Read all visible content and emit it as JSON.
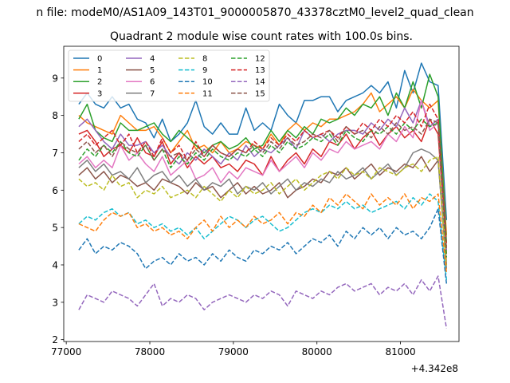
{
  "chart_data": {
    "type": "line",
    "suptitle": "n file: modeM0/AS1A09_143T01_9000005870_43378cztM0_level2_quad_clean",
    "title": "Quadrant 2 module wise count rates with 100.0s bins.",
    "xlabel": "",
    "ylabel": "",
    "x_offset_label": "+4.342e8",
    "xlim": [
      76970,
      81700
    ],
    "ylim": [
      1.95,
      9.85
    ],
    "xticks": [
      77000,
      78000,
      79000,
      80000,
      81000
    ],
    "yticks": [
      2,
      3,
      4,
      5,
      6,
      7,
      8,
      9
    ],
    "grid": false,
    "legend": {
      "placement": "upper-left",
      "columns": 4
    },
    "x": [
      77150,
      77250,
      77350,
      77450,
      77550,
      77650,
      77750,
      77850,
      77950,
      78050,
      78150,
      78250,
      78350,
      78450,
      78550,
      78650,
      78750,
      78850,
      78950,
      79050,
      79150,
      79250,
      79350,
      79450,
      79550,
      79650,
      79750,
      79850,
      79950,
      80050,
      80150,
      80250,
      80350,
      80450,
      80550,
      80650,
      80750,
      80850,
      80950,
      81050,
      81150,
      81250,
      81350,
      81450,
      81550
    ],
    "series": [
      {
        "name": "0",
        "color": "#1f77b4",
        "dash": "solid",
        "values": [
          8.3,
          8.6,
          8.3,
          8.2,
          8.5,
          8.2,
          8.3,
          7.9,
          7.8,
          7.4,
          7.9,
          7.3,
          7.5,
          7.8,
          8.4,
          7.7,
          7.5,
          7.8,
          7.5,
          7.5,
          8.2,
          7.6,
          7.8,
          7.6,
          8.3,
          8.0,
          7.8,
          8.4,
          8.4,
          8.5,
          8.5,
          8.1,
          8.4,
          8.5,
          8.6,
          8.8,
          8.6,
          8.9,
          8.2,
          9.2,
          8.6,
          9.4,
          8.9,
          8.8,
          5.2
        ]
      },
      {
        "name": "1",
        "color": "#ff7f0e",
        "dash": "solid",
        "values": [
          8.0,
          7.8,
          7.7,
          7.6,
          7.5,
          8.0,
          7.8,
          7.6,
          7.6,
          7.7,
          7.4,
          7.0,
          7.3,
          7.6,
          7.1,
          7.2,
          7.0,
          7.3,
          7.0,
          7.1,
          7.3,
          7.2,
          7.1,
          7.5,
          7.2,
          7.6,
          7.8,
          7.6,
          7.8,
          7.7,
          7.9,
          7.9,
          8.0,
          8.1,
          8.3,
          8.6,
          8.1,
          8.3,
          8.5,
          8.2,
          8.7,
          8.4,
          8.2,
          8.4,
          4.8
        ]
      },
      {
        "name": "2",
        "color": "#2ca02c",
        "dash": "solid",
        "values": [
          7.9,
          8.3,
          7.6,
          7.4,
          7.3,
          7.8,
          7.6,
          7.6,
          7.7,
          7.8,
          7.5,
          7.3,
          7.6,
          7.4,
          7.2,
          7.0,
          7.2,
          7.3,
          7.1,
          7.2,
          7.4,
          7.1,
          7.2,
          7.6,
          7.3,
          7.6,
          7.4,
          7.7,
          7.5,
          7.9,
          7.8,
          7.9,
          8.2,
          8.0,
          8.3,
          8.2,
          8.5,
          8.0,
          8.6,
          8.2,
          8.9,
          8.2,
          9.1,
          8.5,
          4.6
        ]
      },
      {
        "name": "3",
        "color": "#d62728",
        "dash": "solid",
        "values": [
          7.5,
          7.6,
          7.3,
          6.9,
          7.1,
          7.2,
          7.0,
          7.4,
          7.0,
          6.9,
          7.3,
          6.7,
          7.0,
          6.6,
          6.9,
          6.7,
          6.9,
          6.6,
          6.7,
          6.5,
          6.8,
          6.7,
          6.4,
          6.9,
          6.5,
          6.8,
          7.0,
          6.7,
          7.1,
          6.9,
          7.3,
          7.2,
          7.5,
          7.1,
          7.4,
          7.6,
          7.2,
          7.5,
          7.7,
          7.4,
          7.6,
          7.3,
          7.9,
          7.5,
          4.3
        ]
      },
      {
        "name": "4",
        "color": "#9467bd",
        "dash": "solid",
        "values": [
          7.7,
          7.9,
          7.6,
          7.3,
          7.1,
          7.5,
          7.2,
          7.2,
          7.3,
          7.0,
          7.2,
          6.9,
          6.7,
          7.0,
          6.8,
          7.1,
          6.9,
          6.7,
          7.0,
          6.8,
          7.2,
          6.9,
          7.1,
          7.0,
          7.2,
          7.4,
          7.1,
          7.6,
          7.4,
          7.5,
          7.3,
          7.5,
          7.6,
          7.6,
          7.5,
          7.8,
          7.6,
          7.9,
          7.7,
          8.2,
          7.8,
          8.4,
          7.7,
          7.9,
          4.4
        ]
      },
      {
        "name": "5",
        "color": "#8c564b",
        "dash": "solid",
        "values": [
          6.4,
          6.6,
          6.3,
          6.5,
          6.2,
          6.4,
          6.3,
          6.1,
          6.2,
          6.0,
          6.3,
          6.2,
          6.1,
          5.9,
          6.2,
          6.0,
          6.1,
          5.8,
          6.0,
          6.2,
          5.9,
          6.1,
          5.9,
          6.0,
          6.2,
          5.8,
          6.0,
          6.1,
          6.3,
          6.2,
          6.5,
          6.4,
          6.6,
          6.3,
          6.5,
          6.7,
          6.4,
          6.6,
          6.5,
          6.7,
          6.6,
          6.9,
          6.5,
          6.8,
          4.0
        ]
      },
      {
        "name": "6",
        "color": "#e377c2",
        "dash": "solid",
        "values": [
          6.7,
          6.9,
          6.6,
          6.8,
          6.6,
          7.2,
          6.8,
          7.0,
          6.7,
          6.5,
          6.9,
          6.4,
          6.6,
          6.8,
          6.3,
          6.4,
          6.6,
          6.2,
          6.5,
          6.3,
          6.6,
          6.5,
          6.4,
          6.8,
          6.5,
          6.7,
          6.9,
          6.6,
          7.0,
          6.8,
          7.1,
          7.0,
          7.3,
          7.1,
          7.2,
          7.3,
          7.1,
          7.5,
          7.3,
          7.7,
          7.4,
          8.4,
          7.6,
          7.8,
          4.1
        ]
      },
      {
        "name": "7",
        "color": "#7f7f7f",
        "dash": "solid",
        "values": [
          6.6,
          6.8,
          6.5,
          6.7,
          6.4,
          6.5,
          6.3,
          6.6,
          6.2,
          6.4,
          6.5,
          6.2,
          6.4,
          6.1,
          6.3,
          6.0,
          6.2,
          6.1,
          6.3,
          5.9,
          6.1,
          6.0,
          6.2,
          5.9,
          6.1,
          6.3,
          6.0,
          6.2,
          6.1,
          6.3,
          6.2,
          6.5,
          6.3,
          6.4,
          6.6,
          6.3,
          6.5,
          6.7,
          6.4,
          6.6,
          7.0,
          7.1,
          7.0,
          6.8,
          3.9
        ]
      },
      {
        "name": "8",
        "color": "#bcbd22",
        "dash": "dashed",
        "values": [
          6.3,
          6.1,
          6.2,
          6.0,
          6.4,
          6.1,
          6.2,
          5.8,
          6.0,
          5.9,
          6.1,
          5.8,
          5.9,
          6.0,
          5.8,
          6.1,
          5.9,
          5.7,
          6.0,
          5.8,
          6.1,
          5.9,
          6.0,
          6.2,
          5.9,
          6.1,
          6.3,
          6.0,
          6.2,
          6.4,
          6.5,
          6.3,
          6.6,
          6.4,
          6.5,
          6.3,
          6.6,
          6.5,
          6.4,
          6.6,
          6.7,
          6.5,
          6.8,
          6.9,
          4.0
        ]
      },
      {
        "name": "9",
        "color": "#17becf",
        "dash": "dashed",
        "values": [
          5.1,
          5.3,
          5.2,
          5.4,
          5.5,
          5.3,
          5.4,
          5.1,
          5.2,
          5.0,
          5.1,
          4.9,
          5.0,
          4.8,
          5.0,
          4.7,
          4.9,
          5.1,
          5.3,
          5.2,
          5.0,
          5.2,
          5.3,
          5.1,
          4.9,
          5.0,
          5.2,
          5.4,
          5.5,
          5.4,
          5.6,
          5.5,
          5.7,
          5.5,
          5.6,
          5.4,
          5.5,
          5.6,
          5.7,
          5.5,
          5.8,
          5.6,
          5.9,
          5.7,
          3.6
        ]
      },
      {
        "name": "10",
        "color": "#1f77b4",
        "dash": "dashed",
        "values": [
          4.4,
          4.7,
          4.3,
          4.5,
          4.4,
          4.6,
          4.5,
          4.3,
          3.9,
          4.1,
          4.2,
          4.0,
          4.3,
          4.1,
          4.2,
          4.0,
          4.3,
          4.1,
          4.4,
          4.2,
          4.1,
          4.4,
          4.3,
          4.5,
          4.4,
          4.6,
          4.3,
          4.5,
          4.7,
          4.6,
          4.8,
          4.5,
          4.9,
          4.7,
          5.0,
          4.8,
          5.0,
          4.7,
          5.0,
          4.8,
          4.9,
          4.7,
          5.0,
          5.5,
          3.5
        ]
      },
      {
        "name": "11",
        "color": "#ff7f0e",
        "dash": "dashed",
        "values": [
          5.1,
          5.0,
          4.9,
          5.2,
          5.4,
          5.3,
          5.4,
          5.0,
          5.1,
          4.9,
          5.0,
          4.8,
          4.9,
          4.7,
          5.0,
          5.2,
          4.9,
          5.3,
          5.0,
          5.2,
          5.0,
          5.3,
          5.1,
          5.2,
          5.4,
          5.1,
          5.4,
          5.3,
          5.6,
          5.4,
          5.8,
          5.6,
          5.9,
          5.7,
          5.5,
          5.9,
          5.6,
          5.8,
          5.6,
          5.9,
          5.5,
          5.8,
          5.7,
          5.9,
          3.8
        ]
      },
      {
        "name": "12",
        "color": "#2ca02c",
        "dash": "dashed",
        "values": [
          6.8,
          7.1,
          6.9,
          7.2,
          7.0,
          7.3,
          7.0,
          6.9,
          7.2,
          6.8,
          7.1,
          6.6,
          6.9,
          6.7,
          7.0,
          6.8,
          7.1,
          6.9,
          6.8,
          7.0,
          6.9,
          7.1,
          6.9,
          7.2,
          7.0,
          7.3,
          7.1,
          7.2,
          7.4,
          7.3,
          7.5,
          7.2,
          7.6,
          7.4,
          7.3,
          7.6,
          7.5,
          7.7,
          7.5,
          7.8,
          7.6,
          7.9,
          7.7,
          7.8,
          4.2
        ]
      },
      {
        "name": "13",
        "color": "#d62728",
        "dash": "dashed",
        "values": [
          7.3,
          7.5,
          7.2,
          7.4,
          7.6,
          7.2,
          7.5,
          7.0,
          7.3,
          6.9,
          7.4,
          7.0,
          7.2,
          6.8,
          7.3,
          6.9,
          7.2,
          7.0,
          6.9,
          7.1,
          7.0,
          7.3,
          7.1,
          7.4,
          7.2,
          7.5,
          7.3,
          7.6,
          7.4,
          7.5,
          7.6,
          7.4,
          7.7,
          7.5,
          7.8,
          7.6,
          7.9,
          7.7,
          8.0,
          7.8,
          8.1,
          7.7,
          8.3,
          7.9,
          4.5
        ]
      },
      {
        "name": "14",
        "color": "#9467bd",
        "dash": "dashed",
        "values": [
          2.8,
          3.2,
          3.1,
          3.0,
          3.3,
          3.2,
          3.1,
          2.9,
          3.2,
          3.5,
          2.9,
          3.1,
          3.0,
          3.2,
          3.1,
          2.8,
          3.0,
          3.1,
          3.2,
          3.1,
          3.0,
          3.2,
          3.1,
          3.3,
          3.2,
          2.9,
          3.3,
          3.2,
          3.1,
          3.3,
          3.2,
          3.4,
          3.5,
          3.3,
          3.4,
          3.5,
          3.2,
          3.4,
          3.3,
          3.5,
          3.2,
          3.6,
          3.3,
          3.7,
          2.3
        ]
      },
      {
        "name": "15",
        "color": "#8c564b",
        "dash": "dashed",
        "values": [
          7.1,
          7.3,
          7.0,
          7.2,
          6.9,
          7.3,
          7.1,
          7.0,
          7.2,
          6.8,
          7.1,
          6.9,
          7.0,
          6.8,
          7.1,
          6.9,
          7.2,
          7.0,
          6.9,
          7.1,
          7.0,
          7.2,
          7.0,
          7.3,
          7.1,
          7.4,
          7.2,
          7.3,
          7.5,
          7.4,
          7.6,
          7.3,
          7.7,
          7.5,
          7.6,
          7.4,
          7.7,
          7.5,
          7.8,
          7.6,
          7.7,
          7.5,
          7.9,
          7.8,
          4.4
        ]
      }
    ]
  }
}
